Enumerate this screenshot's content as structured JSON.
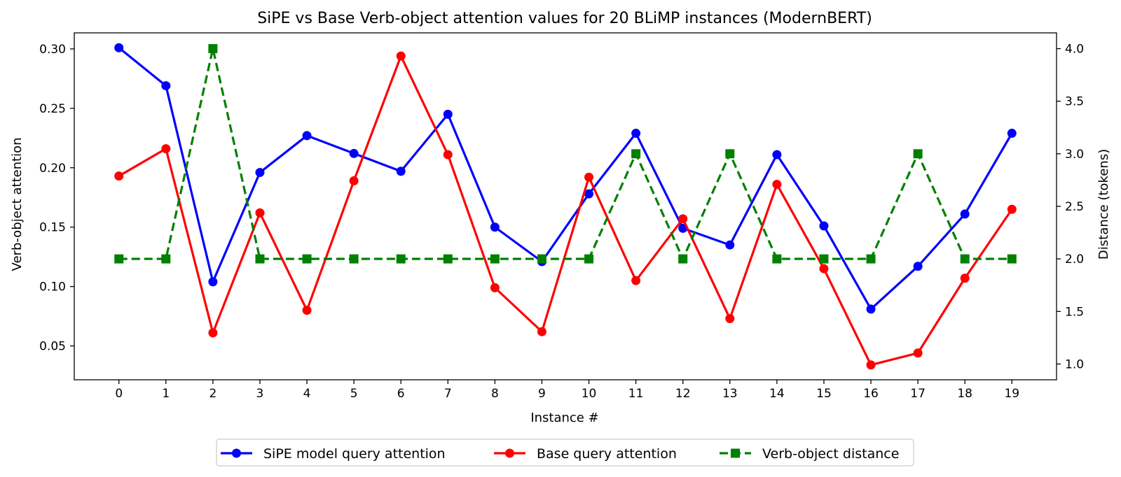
{
  "chart_data": {
    "type": "line",
    "title": "SiPE vs Base Verb-object attention values for 20 BLiMP instances (ModernBERT)",
    "xlabel": "Instance #",
    "ylabel": "Verb-object attention",
    "y2label": "Distance (tokens)",
    "x": [
      0,
      1,
      2,
      3,
      4,
      5,
      6,
      7,
      8,
      9,
      10,
      11,
      12,
      13,
      14,
      15,
      16,
      17,
      18,
      19
    ],
    "x_ticks": [
      "0",
      "1",
      "2",
      "3",
      "4",
      "5",
      "6",
      "7",
      "8",
      "9",
      "10",
      "11",
      "12",
      "13",
      "14",
      "15",
      "16",
      "17",
      "18",
      "19"
    ],
    "xlim": [
      -0.95,
      19.95
    ],
    "ylim": [
      0.0215,
      0.3135
    ],
    "y_ticks": [
      "0.05",
      "0.10",
      "0.15",
      "0.20",
      "0.25",
      "0.30"
    ],
    "y_tick_values": [
      0.05,
      0.1,
      0.15,
      0.2,
      0.25,
      0.3
    ],
    "y2lim": [
      0.85,
      4.15
    ],
    "y2_ticks": [
      "1.0",
      "1.5",
      "2.0",
      "2.5",
      "3.0",
      "3.5",
      "4.0"
    ],
    "y2_tick_values": [
      1.0,
      1.5,
      2.0,
      2.5,
      3.0,
      3.5,
      4.0
    ],
    "grid": false,
    "legend_position": "bottom-center, below the plot",
    "series": [
      {
        "name": "SiPE model query attention",
        "axis": "left",
        "color": "#0000ff",
        "marker": "circle",
        "linestyle": "solid",
        "values": [
          0.301,
          0.269,
          0.104,
          0.196,
          0.227,
          0.212,
          0.197,
          0.245,
          0.15,
          0.121,
          0.178,
          0.229,
          0.149,
          0.135,
          0.211,
          0.151,
          0.081,
          0.117,
          0.161,
          0.229
        ]
      },
      {
        "name": "Base query attention",
        "axis": "left",
        "color": "#ff0000",
        "marker": "circle",
        "linestyle": "solid",
        "values": [
          0.193,
          0.216,
          0.061,
          0.162,
          0.08,
          0.189,
          0.294,
          0.211,
          0.099,
          0.062,
          0.192,
          0.105,
          0.157,
          0.073,
          0.186,
          0.115,
          0.034,
          0.044,
          0.107,
          0.165
        ]
      },
      {
        "name": "Verb-object distance",
        "axis": "right",
        "color": "#008000",
        "marker": "square",
        "linestyle": "dashed",
        "values": [
          2,
          2,
          4,
          2,
          2,
          2,
          2,
          2,
          2,
          2,
          2,
          3,
          2,
          3,
          2,
          2,
          2,
          3,
          2,
          2
        ]
      }
    ]
  }
}
